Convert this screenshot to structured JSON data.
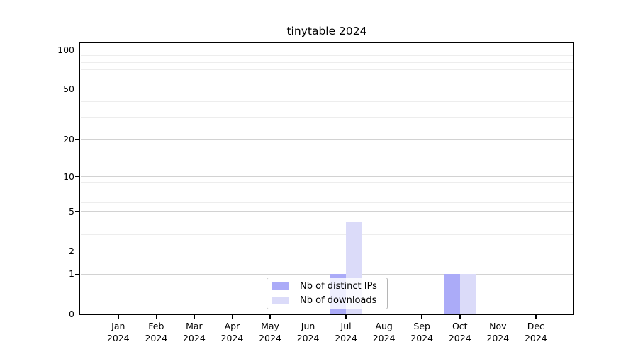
{
  "chart_data": {
    "type": "bar",
    "title": "tinytable 2024",
    "categories": [
      "Jan 2024",
      "Feb 2024",
      "Mar 2024",
      "Apr 2024",
      "May 2024",
      "Jun 2024",
      "Jul 2024",
      "Aug 2024",
      "Sep 2024",
      "Oct 2024",
      "Nov 2024",
      "Dec 2024"
    ],
    "series": [
      {
        "name": "Nb of distinct IPs",
        "color": "#ababf8",
        "values": [
          0,
          0,
          0,
          0,
          0,
          0,
          1,
          0,
          0,
          1,
          0,
          0
        ]
      },
      {
        "name": "Nb of downloads",
        "color": "#dbdbf9",
        "values": [
          0,
          0,
          0,
          0,
          0,
          0,
          4,
          0,
          0,
          1,
          0,
          0
        ]
      }
    ],
    "xlabel": "",
    "ylabel": "",
    "y_scale": "log1p",
    "y_tick_values": [
      0,
      1,
      2,
      5,
      10,
      20,
      50,
      100
    ],
    "y_minor_gridlines": [
      3,
      4,
      6,
      7,
      8,
      9,
      30,
      40,
      60,
      70,
      80,
      90
    ],
    "ylim": [
      0,
      113
    ],
    "grid": true,
    "legend_position": "bottom-center"
  }
}
